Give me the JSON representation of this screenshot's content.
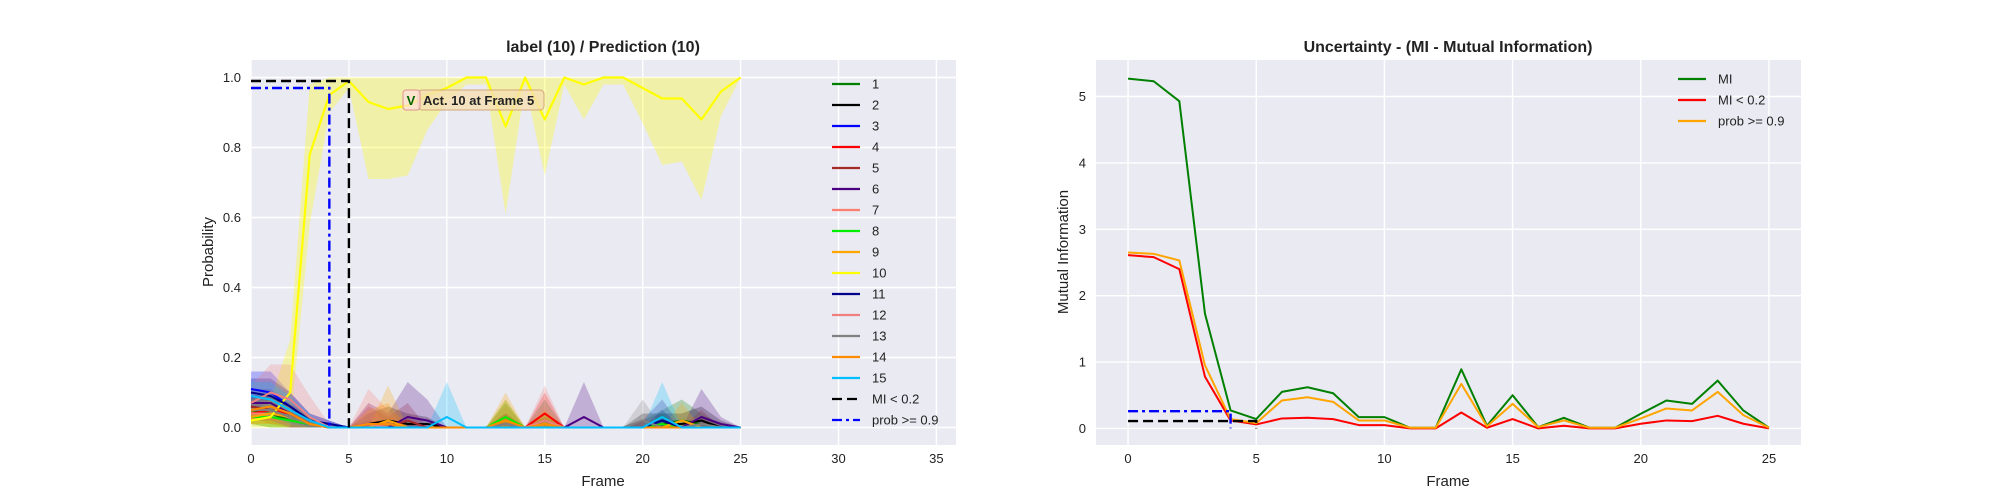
{
  "chart_data": [
    {
      "type": "line",
      "title": "label (10) / Prediction (10)",
      "xlabel": "Frame",
      "ylabel": "Probability",
      "xlim": [
        0,
        36
      ],
      "ylim": [
        -0.05,
        1.05
      ],
      "xticks": [
        0,
        5,
        10,
        15,
        20,
        25,
        30,
        35
      ],
      "yticks": [
        0.0,
        0.2,
        0.4,
        0.6,
        0.8,
        1.0
      ],
      "grid": true,
      "legend_position": "right",
      "x": [
        0,
        1,
        2,
        3,
        4,
        5,
        6,
        7,
        8,
        9,
        10,
        11,
        12,
        13,
        14,
        15,
        16,
        17,
        18,
        19,
        20,
        21,
        22,
        23,
        24,
        25
      ],
      "series": [
        {
          "name": "1",
          "color": "#008000",
          "values": [
            0.05,
            0.04,
            0.02,
            0.01,
            0,
            0,
            0,
            0,
            0,
            0,
            0,
            0,
            0,
            0.02,
            0,
            0.02,
            0,
            0,
            0,
            0,
            0,
            0.01,
            0.02,
            0.01,
            0,
            0
          ],
          "band": [
            0.04,
            0.06,
            0.04,
            0.02,
            0,
            0,
            0.02,
            0.01,
            0.02,
            0,
            0,
            0,
            0,
            0.05,
            0,
            0.06,
            0,
            0,
            0,
            0,
            0.02,
            0.04,
            0.06,
            0.03,
            0.01,
            0
          ]
        },
        {
          "name": "2",
          "color": "#000000",
          "values": [
            0.06,
            0.05,
            0.03,
            0.01,
            0,
            0,
            0.01,
            0.02,
            0.01,
            0.01,
            0,
            0,
            0,
            0.01,
            0,
            0.01,
            0,
            0,
            0,
            0,
            0,
            0.01,
            0.01,
            0.02,
            0,
            0
          ],
          "band": [
            0.03,
            0.04,
            0.03,
            0.02,
            0,
            0,
            0.03,
            0.04,
            0.03,
            0.02,
            0,
            0,
            0,
            0.03,
            0,
            0.02,
            0,
            0,
            0,
            0,
            0.04,
            0.03,
            0.03,
            0.04,
            0.02,
            0
          ]
        },
        {
          "name": "3",
          "color": "#0000ff",
          "values": [
            0.11,
            0.1,
            0.06,
            0.02,
            0.01,
            0,
            0,
            0,
            0,
            0,
            0,
            0,
            0,
            0,
            0,
            0,
            0,
            0,
            0,
            0,
            0,
            0,
            0,
            0,
            0,
            0
          ],
          "band": [
            0.05,
            0.06,
            0.04,
            0.02,
            0.01,
            0,
            0,
            0,
            0,
            0,
            0,
            0,
            0,
            0,
            0,
            0,
            0,
            0,
            0,
            0,
            0,
            0,
            0,
            0,
            0,
            0
          ]
        },
        {
          "name": "4",
          "color": "#ff0000",
          "values": [
            0.04,
            0.05,
            0.04,
            0.01,
            0,
            0,
            0,
            0,
            0,
            0,
            0,
            0,
            0,
            0.01,
            0,
            0.04,
            0,
            0,
            0,
            0,
            0,
            0,
            0,
            0,
            0,
            0
          ],
          "band": [
            0.03,
            0.04,
            0.03,
            0.02,
            0,
            0,
            0,
            0,
            0,
            0,
            0,
            0,
            0,
            0.03,
            0,
            0.06,
            0,
            0,
            0,
            0,
            0,
            0,
            0,
            0,
            0,
            0
          ]
        },
        {
          "name": "5",
          "color": "#a52a2a",
          "values": [
            0.06,
            0.05,
            0.03,
            0.01,
            0,
            0,
            0.01,
            0,
            0.02,
            0,
            0,
            0,
            0,
            0,
            0,
            0,
            0,
            0,
            0,
            0,
            0,
            0.01,
            0,
            0.01,
            0,
            0
          ],
          "band": [
            0.03,
            0.03,
            0.03,
            0.02,
            0,
            0,
            0.05,
            0.03,
            0.05,
            0,
            0,
            0,
            0,
            0,
            0,
            0,
            0,
            0,
            0,
            0,
            0.02,
            0.03,
            0,
            0.04,
            0,
            0
          ]
        },
        {
          "name": "6",
          "color": "#4b0082",
          "values": [
            0.07,
            0.07,
            0.04,
            0.01,
            0,
            0,
            0.01,
            0,
            0.03,
            0.02,
            0,
            0,
            0,
            0,
            0,
            0,
            0,
            0.03,
            0,
            0,
            0,
            0.02,
            0,
            0.03,
            0.01,
            0
          ],
          "band": [
            0.04,
            0.04,
            0.03,
            0.02,
            0,
            0,
            0.06,
            0.04,
            0.1,
            0.06,
            0,
            0,
            0,
            0,
            0,
            0,
            0,
            0.1,
            0,
            0,
            0.02,
            0.06,
            0,
            0.08,
            0.02,
            0
          ]
        },
        {
          "name": "7",
          "color": "#fa8072",
          "values": [
            0.04,
            0.04,
            0.03,
            0.01,
            0,
            0,
            0.01,
            0,
            0,
            0,
            0,
            0,
            0,
            0.01,
            0,
            0.01,
            0,
            0,
            0,
            0,
            0,
            0,
            0,
            0,
            0,
            0
          ],
          "band": [
            0.03,
            0.04,
            0.03,
            0.02,
            0,
            0,
            0.1,
            0.05,
            0,
            0,
            0,
            0,
            0,
            0.05,
            0,
            0.05,
            0,
            0,
            0,
            0,
            0,
            0,
            0,
            0,
            0,
            0
          ]
        },
        {
          "name": "8",
          "color": "#00ee00",
          "values": [
            0.03,
            0.03,
            0.02,
            0.01,
            0,
            0,
            0,
            0,
            0,
            0,
            0,
            0,
            0,
            0.03,
            0,
            0.01,
            0,
            0,
            0,
            0,
            0,
            0.01,
            0,
            0,
            0,
            0
          ],
          "band": [
            0.02,
            0.03,
            0.02,
            0.01,
            0,
            0,
            0,
            0,
            0,
            0,
            0,
            0,
            0,
            0.05,
            0,
            0.03,
            0,
            0,
            0,
            0,
            0,
            0.03,
            0,
            0,
            0,
            0
          ]
        },
        {
          "name": "9",
          "color": "#ffa500",
          "values": [
            0.03,
            0.04,
            0.03,
            0.01,
            0,
            0,
            0,
            0.02,
            0,
            0,
            0,
            0,
            0,
            0.02,
            0,
            0.01,
            0,
            0,
            0,
            0,
            0,
            0,
            0.02,
            0,
            0,
            0
          ],
          "band": [
            0.02,
            0.03,
            0.03,
            0.02,
            0,
            0,
            0,
            0.1,
            0,
            0,
            0,
            0,
            0,
            0.08,
            0,
            0.04,
            0,
            0,
            0,
            0,
            0,
            0,
            0.05,
            0,
            0,
            0
          ]
        },
        {
          "name": "10",
          "color": "#ffff00",
          "values": [
            0.02,
            0.03,
            0.1,
            0.78,
            0.95,
            0.99,
            0.93,
            0.91,
            0.92,
            0.95,
            0.97,
            1.0,
            1.0,
            0.86,
            1.0,
            0.88,
            1.0,
            0.98,
            1.0,
            1.0,
            0.97,
            0.94,
            0.94,
            0.88,
            0.96,
            1.0
          ],
          "band": [
            0.02,
            0.05,
            0.15,
            0.2,
            0.05,
            0.02,
            0.22,
            0.2,
            0.2,
            0.1,
            0.04,
            0.02,
            0.02,
            0.25,
            0.02,
            0.16,
            0.02,
            0.1,
            0.02,
            0.02,
            0.1,
            0.19,
            0.18,
            0.23,
            0.07,
            0.0
          ]
        },
        {
          "name": "11",
          "color": "#00008b",
          "values": [
            0.1,
            0.09,
            0.06,
            0.02,
            0.01,
            0,
            0,
            0,
            0,
            0,
            0,
            0,
            0,
            0,
            0,
            0,
            0,
            0,
            0,
            0,
            0,
            0.02,
            0,
            0,
            0,
            0
          ],
          "band": [
            0.04,
            0.05,
            0.04,
            0.02,
            0.01,
            0,
            0,
            0,
            0,
            0,
            0,
            0,
            0,
            0,
            0,
            0,
            0,
            0,
            0,
            0,
            0,
            0.03,
            0,
            0,
            0,
            0
          ]
        },
        {
          "name": "12",
          "color": "#f08080",
          "values": [
            0.07,
            0.1,
            0.08,
            0.03,
            0,
            0,
            0.01,
            0,
            0,
            0,
            0,
            0,
            0,
            0,
            0,
            0.02,
            0,
            0,
            0,
            0,
            0,
            0,
            0,
            0,
            0,
            0
          ],
          "band": [
            0.05,
            0.08,
            0.1,
            0.06,
            0.01,
            0,
            0.06,
            0,
            0,
            0,
            0,
            0,
            0,
            0,
            0,
            0.1,
            0,
            0,
            0,
            0,
            0,
            0,
            0,
            0,
            0,
            0
          ]
        },
        {
          "name": "13",
          "color": "#808080",
          "values": [
            0.05,
            0.05,
            0.03,
            0.01,
            0,
            0,
            0,
            0,
            0,
            0,
            0,
            0,
            0,
            0.01,
            0,
            0,
            0,
            0,
            0,
            0,
            0.02,
            0,
            0,
            0.01,
            0,
            0
          ],
          "band": [
            0.03,
            0.03,
            0.03,
            0.02,
            0,
            0,
            0,
            0,
            0,
            0,
            0,
            0,
            0,
            0.03,
            0,
            0,
            0,
            0,
            0,
            0,
            0.06,
            0,
            0,
            0.03,
            0,
            0
          ]
        },
        {
          "name": "14",
          "color": "#ff8c00",
          "values": [
            0.05,
            0.06,
            0.04,
            0.01,
            0,
            0,
            0.01,
            0.01,
            0,
            0,
            0,
            0,
            0,
            0.02,
            0,
            0.01,
            0,
            0,
            0,
            0,
            0,
            0,
            0,
            0,
            0,
            0
          ],
          "band": [
            0.03,
            0.04,
            0.03,
            0.02,
            0,
            0,
            0.04,
            0.06,
            0,
            0,
            0,
            0,
            0,
            0.06,
            0,
            0.03,
            0,
            0,
            0,
            0,
            0,
            0,
            0,
            0,
            0,
            0
          ]
        },
        {
          "name": "15",
          "color": "#00bfff",
          "values": [
            0.09,
            0.08,
            0.05,
            0.02,
            0,
            0,
            0,
            0,
            0,
            0,
            0.03,
            0,
            0,
            0,
            0,
            0,
            0,
            0,
            0,
            0,
            0,
            0.03,
            0,
            0,
            0,
            0
          ],
          "band": [
            0.04,
            0.05,
            0.04,
            0.02,
            0,
            0,
            0,
            0,
            0,
            0,
            0.1,
            0,
            0,
            0,
            0,
            0,
            0,
            0,
            0,
            0,
            0,
            0.1,
            0,
            0,
            0,
            0
          ]
        }
      ],
      "threshold_lines": [
        {
          "name": "MI < 0.2",
          "color": "#000000",
          "style": "dashed",
          "level": 0.99,
          "x_start": 0,
          "x_end": 5
        },
        {
          "name": "prob >= 0.9",
          "color": "#0000ff",
          "style": "dashdot",
          "level": 0.97,
          "x_start": 0,
          "x_end": 4
        }
      ],
      "annotation": {
        "badge": "V",
        "text": "Act. 10 at Frame 5",
        "x": 8.2,
        "y": 0.935
      }
    },
    {
      "type": "line",
      "title": "Uncertainty - (MI - Mutual Information)",
      "xlabel": "Frame",
      "ylabel": "Mutual Information",
      "xlim": [
        -1.25,
        26.25
      ],
      "ylim": [
        -0.25,
        5.55
      ],
      "xticks": [
        0,
        5,
        10,
        15,
        20,
        25
      ],
      "yticks": [
        0,
        1,
        2,
        3,
        4,
        5
      ],
      "grid": true,
      "legend_position": "top-right",
      "x": [
        0,
        1,
        2,
        3,
        4,
        5,
        6,
        7,
        8,
        9,
        10,
        11,
        12,
        13,
        14,
        15,
        16,
        17,
        18,
        19,
        20,
        21,
        22,
        23,
        24,
        25
      ],
      "series": [
        {
          "name": "MI",
          "color": "#008000",
          "values": [
            5.27,
            5.23,
            4.93,
            1.73,
            0.27,
            0.14,
            0.55,
            0.62,
            0.53,
            0.17,
            0.17,
            0.01,
            0.01,
            0.89,
            0.04,
            0.5,
            0.02,
            0.16,
            0.01,
            0.01,
            0.22,
            0.42,
            0.37,
            0.72,
            0.27,
            0.01
          ]
        },
        {
          "name": "MI < 0.2",
          "color": "#ff0000",
          "values": [
            2.61,
            2.58,
            2.4,
            0.78,
            0.12,
            0.06,
            0.15,
            0.16,
            0.14,
            0.05,
            0.05,
            0.0,
            0.0,
            0.24,
            0.01,
            0.14,
            0.0,
            0.04,
            0.0,
            0.0,
            0.07,
            0.12,
            0.11,
            0.19,
            0.07,
            0.0
          ]
        },
        {
          "name": "prob >= 0.9",
          "color": "#ffa500",
          "values": [
            2.65,
            2.63,
            2.53,
            0.95,
            0.14,
            0.08,
            0.42,
            0.47,
            0.4,
            0.12,
            0.12,
            0.01,
            0.01,
            0.67,
            0.03,
            0.37,
            0.02,
            0.12,
            0.01,
            0.01,
            0.15,
            0.3,
            0.27,
            0.55,
            0.2,
            0.01
          ]
        }
      ],
      "threshold_lines": [
        {
          "color": "#000000",
          "style": "dashed",
          "level": 0.11,
          "x_start": 0,
          "x_end": 5
        },
        {
          "color": "#0000ff",
          "style": "dashdot",
          "level": 0.26,
          "x_start": 0,
          "x_end": 4
        }
      ]
    }
  ]
}
